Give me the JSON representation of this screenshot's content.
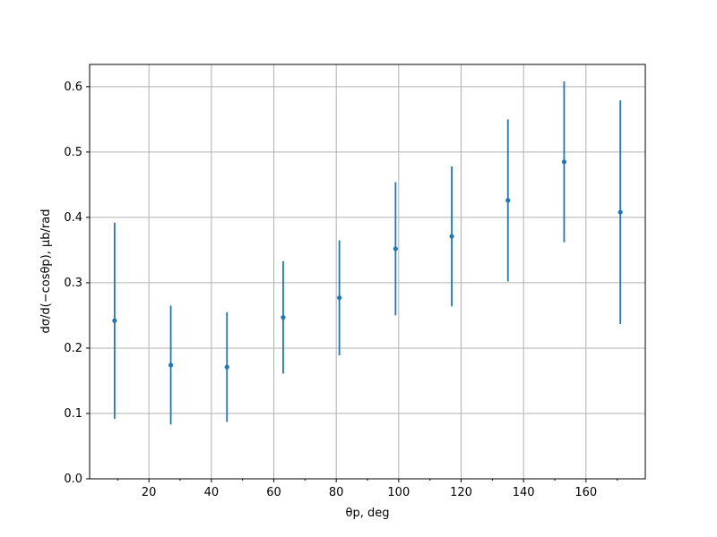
{
  "chart_data": {
    "type": "errorbar",
    "xlabel": "θp, deg",
    "ylabel": "dσ/d(−cosθp), μb/rad",
    "x": [
      9,
      27,
      45,
      63,
      81,
      99,
      117,
      135,
      153,
      171
    ],
    "values": [
      0.242,
      0.174,
      0.171,
      0.247,
      0.277,
      0.352,
      0.371,
      0.426,
      0.485,
      0.408
    ],
    "errors": [
      0.15,
      0.091,
      0.084,
      0.086,
      0.088,
      0.102,
      0.107,
      0.124,
      0.123,
      0.171
    ],
    "color": "#1f77b4",
    "xlim": [
      1,
      179
    ],
    "xticks": [
      20,
      40,
      60,
      80,
      100,
      120,
      140,
      160
    ],
    "xminorticks": [
      10,
      30,
      50,
      70,
      90,
      110,
      130,
      150,
      170
    ],
    "ylim": [
      0,
      0.634
    ],
    "yticks": [
      0.0,
      0.1,
      0.2,
      0.3,
      0.4,
      0.5,
      0.6
    ],
    "grid": true
  }
}
